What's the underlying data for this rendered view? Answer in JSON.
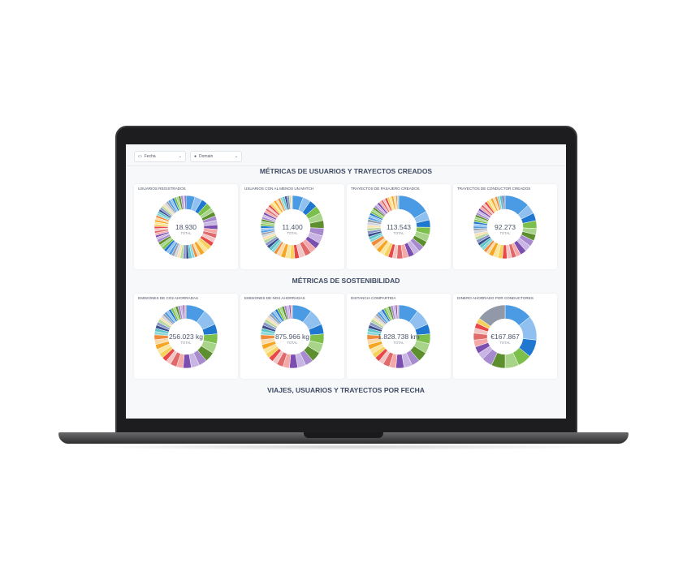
{
  "filters": [
    {
      "label": "Fecha",
      "icon": "calendar-icon"
    },
    {
      "label": "Domain",
      "icon": "tag-icon"
    }
  ],
  "sections": [
    {
      "title": "MÉTRICAS DE USUARIOS Y TRAYECTOS CREADOS"
    },
    {
      "title": "MÉTRICAS DE SOSTENIBILIDAD"
    },
    {
      "title": "VIAJES, USUARIOS Y TRAYECTOS POR FECHA"
    }
  ],
  "total_label": "TOTAL",
  "cards": [
    {
      "title": "USUARIOS REGISTRADOS",
      "value": "18.930",
      "slices": [
        6,
        5,
        4,
        4,
        3,
        3,
        3,
        3,
        3,
        3,
        3,
        3,
        3,
        3,
        3,
        3,
        2,
        2,
        2,
        2,
        2,
        2,
        2,
        2,
        2,
        2,
        2,
        2,
        2,
        2,
        2,
        2,
        2,
        1.5,
        1.5,
        1.5,
        1.5,
        1.5,
        1.5,
        1.5,
        1.5,
        1.5,
        1.5,
        1.5,
        1.5,
        1.5,
        1.5,
        1.5,
        1.5,
        1.5,
        1.5,
        1.5,
        1.5,
        1.5,
        1.5,
        1.5,
        1.5,
        1.5,
        1.5,
        1,
        1
      ]
    },
    {
      "title": "USUARIOS CON AL MENOS UN MATCH",
      "value": "11.400",
      "slices": [
        7,
        5,
        5,
        5,
        5,
        5,
        5,
        5,
        4,
        4,
        4,
        4,
        3,
        3,
        3,
        3,
        3,
        2,
        2,
        2,
        2,
        2,
        2,
        2,
        1.5,
        1.5,
        1.5,
        1.5,
        1.5,
        1.5,
        1.5,
        1.5,
        1.5,
        1.5,
        1.5,
        1.5,
        1.5,
        1.5,
        1.5,
        1.5,
        1.5,
        1.5,
        1.5,
        1.5,
        1.5,
        1.5,
        1.5,
        1.5,
        1,
        1
      ]
    },
    {
      "title": "TRAYECTOS DE PASAJERO CREADOS",
      "value": "113.543",
      "slices": [
        22,
        6,
        5,
        5,
        5,
        4,
        4,
        4,
        4,
        4,
        4,
        3,
        3,
        3,
        3,
        3,
        3,
        3,
        2,
        2,
        2,
        2,
        2,
        2,
        2,
        2,
        1.5,
        1.5,
        1.5,
        1.5,
        1.5,
        1.5,
        1.5,
        1.5,
        1.5,
        1.5,
        1.5,
        1.5,
        1.5,
        1.5,
        1.5,
        1.5,
        1.5,
        1,
        1
      ]
    },
    {
      "title": "TRAYECTOS DE CONDUCTOR CREADOS",
      "value": "92.273",
      "slices": [
        16,
        6,
        5,
        5,
        4,
        4,
        4,
        4,
        4,
        3,
        3,
        3,
        3,
        3,
        3,
        3,
        2,
        2,
        2,
        2,
        2,
        2,
        2,
        2,
        2,
        1.5,
        1.5,
        1.5,
        1.5,
        1.5,
        1.5,
        1.5,
        1.5,
        1.5,
        1.5,
        1.5,
        1.5,
        1.5,
        1.5,
        1.5,
        1.5,
        1.5,
        1.5,
        1.5,
        1.5,
        1.5,
        1,
        1
      ]
    },
    {
      "title": "EMISIONES DE CO2 AHORRADAS",
      "value": "256.023 kg",
      "slices": [
        12,
        10,
        6,
        6,
        6,
        6,
        5,
        5,
        5,
        4,
        4,
        3,
        3,
        3,
        3,
        3,
        3,
        3,
        2,
        2,
        2,
        2,
        2,
        1.5,
        1.5,
        1.5,
        1.5,
        1.5,
        1.5,
        1.5,
        1.5,
        1.5,
        1.5,
        1.5,
        1,
        1
      ]
    },
    {
      "title": "EMISIONES DE NOx AHORRADAS",
      "value": "875.966 kg",
      "slices": [
        12,
        10,
        6,
        6,
        6,
        6,
        5,
        5,
        5,
        4,
        4,
        3,
        3,
        3,
        3,
        3,
        3,
        3,
        2,
        2,
        2,
        2,
        2,
        1.5,
        1.5,
        1.5,
        1.5,
        1.5,
        1.5,
        1.5,
        1.5,
        1.5,
        1.5,
        1.5,
        1,
        1
      ]
    },
    {
      "title": "DISTANCIA COMPARTIDA",
      "value": "1.828.738 km",
      "slices": [
        12,
        10,
        6,
        6,
        6,
        6,
        5,
        5,
        5,
        4,
        4,
        3,
        3,
        3,
        3,
        3,
        3,
        3,
        2,
        2,
        2,
        2,
        2,
        1.5,
        1.5,
        1.5,
        1.5,
        1.5,
        1.5,
        1.5,
        1.5,
        1.5,
        1.5,
        1.5,
        1,
        1
      ]
    },
    {
      "title": "DINERO AHORRADO POR CONDUCTORES",
      "value": "€167.867",
      "slices": [
        16,
        14,
        10,
        8,
        8,
        8,
        6,
        4,
        4,
        4,
        4,
        3,
        3,
        3,
        17
      ]
    }
  ],
  "palette": [
    "#4a9be4",
    "#8fc0ef",
    "#1f77d0",
    "#7cbf4a",
    "#a8d48a",
    "#5d8f2e",
    "#a88bcf",
    "#c9b5e3",
    "#7a4fb0",
    "#f4a8a8",
    "#e06a6a",
    "#f2c4c4",
    "#e84848",
    "#f6d25a",
    "#fbe59a",
    "#f5a623",
    "#fcd9a8",
    "#f08b3c",
    "#8ad7d7",
    "#5ec3c8",
    "#3a4f8c",
    "#8895c7",
    "#b7d9a0",
    "#f9e1b0",
    "#d0d4dc",
    "#9aa0ad"
  ],
  "other_color": "#9198a8"
}
